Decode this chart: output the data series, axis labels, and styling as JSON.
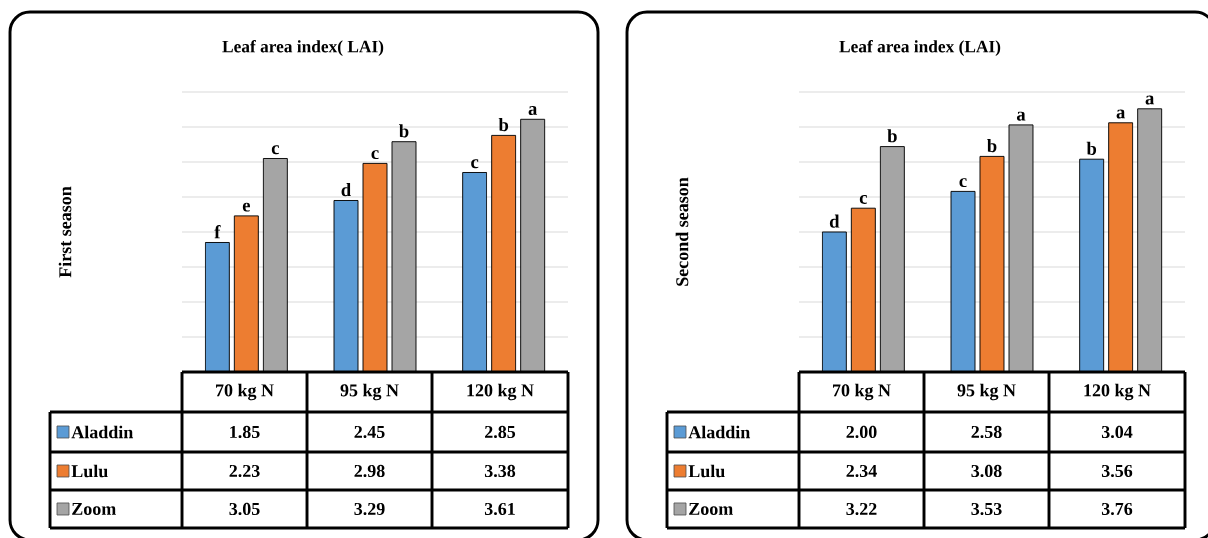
{
  "chart_data": [
    {
      "type": "bar",
      "title": "Leaf area index( LAI)",
      "ylabel": "First season",
      "categories": [
        "70 kg N",
        "95 kg N",
        "120 kg N"
      ],
      "series": [
        {
          "name": "Aladdin",
          "color": "#5b9bd5",
          "values": [
            1.85,
            2.45,
            2.85
          ],
          "value_labels": [
            "1.85",
            "2.45",
            "2.85"
          ]
        },
        {
          "name": "Lulu",
          "color": "#ed7d31",
          "values": [
            2.23,
            2.98,
            3.38
          ],
          "value_labels": [
            "2.23",
            "2.98",
            "3.38"
          ]
        },
        {
          "name": "Zoom",
          "color": "#a5a5a5",
          "values": [
            3.05,
            3.29,
            3.61
          ],
          "value_labels": [
            "3.05",
            "3.29",
            "3.61"
          ]
        }
      ],
      "ylim": [
        0,
        4
      ],
      "yticks": [
        {
          "value": 0.5,
          "label": null
        },
        {
          "value": 1,
          "label": null
        },
        {
          "value": 1.5,
          "label": null
        },
        {
          "value": 2,
          "label": null
        },
        {
          "value": 2.5,
          "label": null
        },
        {
          "value": 3,
          "label": null
        },
        {
          "value": 3.5,
          "label": null
        },
        {
          "value": 4,
          "label": null
        }
      ],
      "grid": "y",
      "legend": "bottom",
      "annotations": [
        "f",
        "e",
        "c",
        "d",
        "c",
        "b",
        "c",
        "b",
        "a"
      ]
    },
    {
      "type": "bar",
      "title": "Leaf area index (LAI)",
      "ylabel": "Second season",
      "categories": [
        "70 kg N",
        "95 kg N",
        "120 kg N"
      ],
      "series": [
        {
          "name": "Aladdin",
          "color": "#5b9bd5",
          "values": [
            2.0,
            2.58,
            3.04
          ],
          "value_labels": [
            "2.00",
            "2.58",
            "3.04"
          ]
        },
        {
          "name": "Lulu",
          "color": "#ed7d31",
          "values": [
            2.34,
            3.08,
            3.56
          ],
          "value_labels": [
            "2.34",
            "3.08",
            "3.56"
          ]
        },
        {
          "name": "Zoom",
          "color": "#a5a5a5",
          "values": [
            3.22,
            3.53,
            3.76
          ],
          "value_labels": [
            "3.22",
            "3.53",
            "3.76"
          ]
        }
      ],
      "ylim": [
        0,
        4
      ],
      "yticks": [
        {
          "value": 0.5,
          "label": null
        },
        {
          "value": 1,
          "label": null
        },
        {
          "value": 1.5,
          "label": null
        },
        {
          "value": 2,
          "label": null
        },
        {
          "value": 2.5,
          "label": null
        },
        {
          "value": 3,
          "label": null
        },
        {
          "value": 3.5,
          "label": null
        },
        {
          "value": 4,
          "label": null
        }
      ],
      "grid": "y",
      "legend": "bottom",
      "annotations": [
        "d",
        "c",
        "b",
        "c",
        "b",
        "a",
        "b",
        "a",
        "a"
      ]
    }
  ]
}
